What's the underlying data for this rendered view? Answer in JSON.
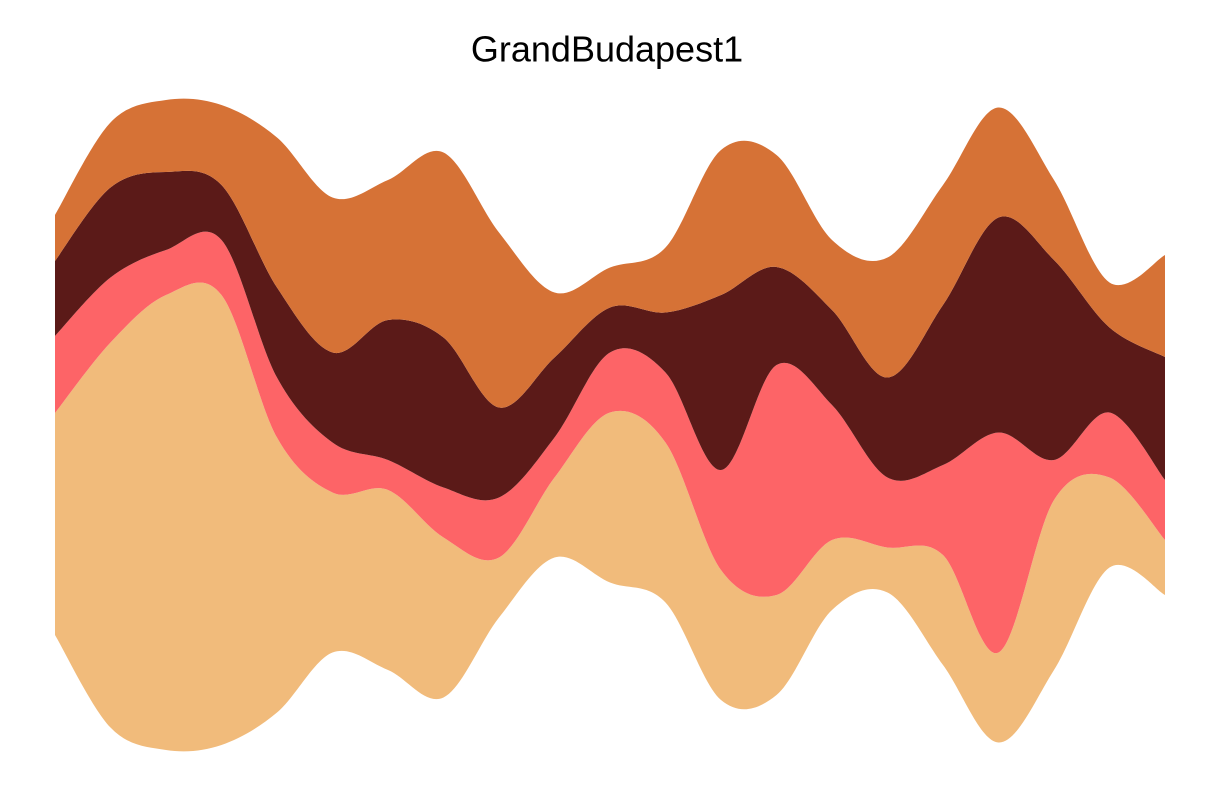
{
  "chart_data": {
    "type": "streamgraph",
    "title": "GrandBudapest1",
    "series": [
      {
        "color": "#F1BB7B",
        "values": [
          222,
          385,
          455,
          450,
          275,
          160,
          180,
          160,
          60,
          80,
          170,
          160,
          130,
          100,
          70,
          45,
          110,
          90,
          170,
          90,
          55
        ]
      },
      {
        "color": "#FD6467",
        "values": [
          77,
          65,
          45,
          55,
          60,
          50,
          30,
          50,
          60,
          40,
          60,
          70,
          100,
          230,
          135,
          70,
          90,
          220,
          40,
          65,
          60
        ]
      },
      {
        "color": "#5B1A18",
        "values": [
          75,
          90,
          78,
          55,
          90,
          90,
          140,
          150,
          90,
          80,
          45,
          60,
          175,
          98,
          95,
          100,
          160,
          215,
          200,
          85,
          123
        ]
      },
      {
        "color": "#D67236",
        "values": [
          46,
          65,
          72,
          80,
          150,
          155,
          140,
          185,
          175,
          65,
          40,
          65,
          145,
          112,
          70,
          120,
          120,
          110,
          80,
          45,
          102
        ]
      }
    ]
  }
}
